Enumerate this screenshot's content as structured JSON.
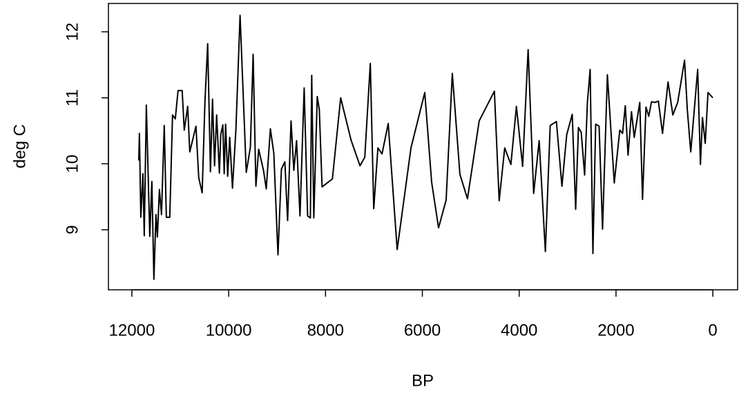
{
  "chart_data": {
    "type": "line",
    "x_label": "BP",
    "y_label": "deg C",
    "x": [
      11858,
      11844,
      11815,
      11772,
      11744,
      11701,
      11630,
      11587,
      11545,
      11502,
      11473,
      11431,
      11388,
      11331,
      11288,
      11217,
      11160,
      11103,
      11046,
      10961,
      10918,
      10847,
      10804,
      10676,
      10619,
      10548,
      10491,
      10434,
      10377,
      10334,
      10292,
      10249,
      10192,
      10164,
      10121,
      10093,
      10064,
      10021,
      9979,
      9922,
      9851,
      9765,
      9637,
      9552,
      9495,
      9438,
      9381,
      9281,
      9224,
      9139,
      9068,
      8982,
      8911,
      8840,
      8783,
      8712,
      8655,
      8598,
      8527,
      8441,
      8370,
      8313,
      8285,
      8242,
      8171,
      8128,
      8071,
      7858,
      7687,
      7473,
      7288,
      7189,
      7075,
      7004,
      6918,
      6833,
      6705,
      6520,
      6235,
      5950,
      5808,
      5665,
      5509,
      5381,
      5224,
      5068,
      4826,
      4512,
      4413,
      4299,
      4171,
      4057,
      3929,
      3815,
      3701,
      3587,
      3459,
      3359,
      3231,
      3117,
      3018,
      2904,
      2833,
      2776,
      2719,
      2648,
      2591,
      2534,
      2477,
      2420,
      2349,
      2278,
      2178,
      2036,
      1922,
      1865,
      1808,
      1751,
      1680,
      1623,
      1509,
      1452,
      1381,
      1324,
      1267,
      1196,
      1125,
      1039,
      925,
      826,
      726,
      584,
      527,
      456,
      313,
      256,
      214,
      157,
      100,
      0
    ],
    "values": [
      10.05,
      10.46,
      9.19,
      9.85,
      8.91,
      10.89,
      8.9,
      9.73,
      8.25,
      9.23,
      8.89,
      9.61,
      9.23,
      10.58,
      9.19,
      9.19,
      10.74,
      10.68,
      11.11,
      11.11,
      10.51,
      10.87,
      10.18,
      10.57,
      9.79,
      9.56,
      10.93,
      11.82,
      9.88,
      10.98,
      9.97,
      10.74,
      9.86,
      10.44,
      10.59,
      9.85,
      10.6,
      9.81,
      10.4,
      9.63,
      10.52,
      12.25,
      9.87,
      10.25,
      11.66,
      9.66,
      10.22,
      9.9,
      9.62,
      10.53,
      10.16,
      8.62,
      9.92,
      10.03,
      9.14,
      10.65,
      9.9,
      10.35,
      9.21,
      11.15,
      9.21,
      9.18,
      11.34,
      9.18,
      11.02,
      10.82,
      9.65,
      9.77,
      11.0,
      10.36,
      9.97,
      10.1,
      11.52,
      9.32,
      10.24,
      10.15,
      10.61,
      8.7,
      10.24,
      11.08,
      9.72,
      9.03,
      9.45,
      11.37,
      9.84,
      9.47,
      10.65,
      11.1,
      9.44,
      10.24,
      9.99,
      10.87,
      9.96,
      11.73,
      9.55,
      10.35,
      8.67,
      10.58,
      10.64,
      9.66,
      10.44,
      10.75,
      9.31,
      10.55,
      10.48,
      9.83,
      10.93,
      11.43,
      8.64,
      10.6,
      10.57,
      9.01,
      11.35,
      9.71,
      10.51,
      10.46,
      10.88,
      10.13,
      10.79,
      10.4,
      10.93,
      9.46,
      10.86,
      10.72,
      10.94,
      10.93,
      10.95,
      10.46,
      11.24,
      10.74,
      10.93,
      11.57,
      10.82,
      10.18,
      11.43,
      9.99,
      10.7,
      10.31,
      11.08,
      11.0
    ],
    "color": "#000000",
    "xlim": [
      12484,
      -512
    ],
    "xticks": [
      12000,
      10000,
      8000,
      6000,
      4000,
      2000,
      0
    ],
    "ylim": [
      8.09,
      12.43
    ],
    "yticks": [
      9,
      10,
      11,
      12
    ]
  }
}
